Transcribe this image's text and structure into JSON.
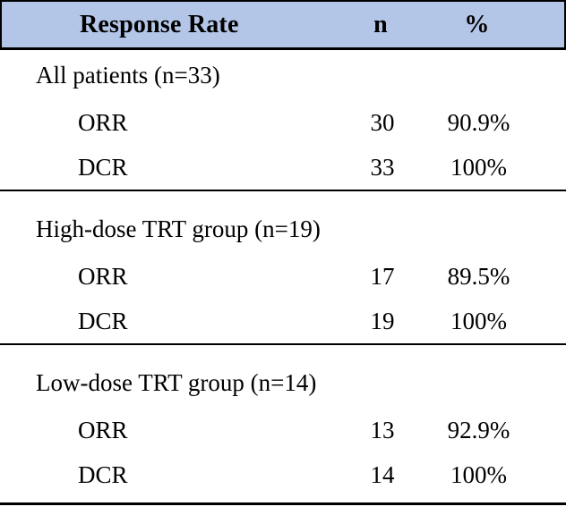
{
  "table": {
    "header": {
      "label": "Response Rate",
      "n": "n",
      "pct": "%"
    },
    "sections": [
      {
        "title": "All patients (n=33)",
        "rows": [
          {
            "label": "ORR",
            "n": "30",
            "pct": "90.9%"
          },
          {
            "label": "DCR",
            "n": "33",
            "pct": "100%"
          }
        ]
      },
      {
        "title": "High-dose TRT group (n=19)",
        "rows": [
          {
            "label": "ORR",
            "n": "17",
            "pct": "89.5%"
          },
          {
            "label": "DCR",
            "n": "19",
            "pct": "100%"
          }
        ]
      },
      {
        "title": "Low-dose TRT group (n=14)",
        "rows": [
          {
            "label": "ORR",
            "n": "13",
            "pct": "92.9%"
          },
          {
            "label": "DCR",
            "n": "14",
            "pct": "100%"
          }
        ]
      }
    ],
    "colors": {
      "header_bg": "#b4c6e7",
      "border": "#000000",
      "text": "#000000"
    }
  },
  "chart_data": {
    "type": "table",
    "title": "Response Rate",
    "columns": [
      "Response Rate",
      "n",
      "%"
    ],
    "rows": [
      [
        "All patients (n=33)",
        "",
        ""
      ],
      [
        "ORR",
        "30",
        "90.9%"
      ],
      [
        "DCR",
        "33",
        "100%"
      ],
      [
        "High-dose TRT group (n=19)",
        "",
        ""
      ],
      [
        "ORR",
        "17",
        "89.5%"
      ],
      [
        "DCR",
        "19",
        "100%"
      ],
      [
        "Low-dose TRT group (n=14)",
        "",
        ""
      ],
      [
        "ORR",
        "13",
        "92.9%"
      ],
      [
        "DCR",
        "14",
        "100%"
      ]
    ]
  }
}
